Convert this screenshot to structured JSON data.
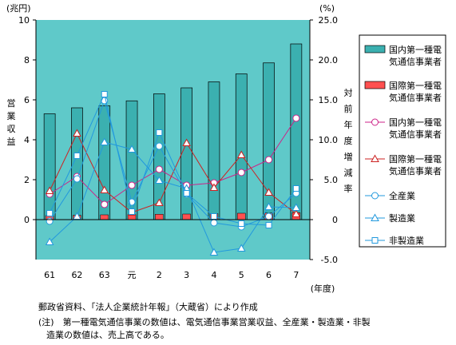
{
  "chart_data": {
    "type": "bar",
    "categories": [
      "61",
      "62",
      "63",
      "元",
      "2",
      "3",
      "4",
      "5",
      "6",
      "7"
    ],
    "xlabel": "(年度)",
    "y_left": {
      "unit": "(兆円)",
      "label": "営業収益",
      "ylim": [
        -2,
        10
      ],
      "ticks": [
        "0",
        "2",
        "4",
        "6",
        "8",
        "10"
      ]
    },
    "y_right": {
      "unit": "(%)",
      "label": "対前年度増減率",
      "ylim": [
        -5.0,
        25.0
      ],
      "ticks": [
        "-5.0",
        "0",
        "5.0",
        "10.0",
        "15.0",
        "20.0",
        "25.0"
      ]
    },
    "background_color": "#5FC9C9",
    "grid": false,
    "legend_position": "right",
    "bar_series": [
      {
        "name": "国内第一種電気通信事業者",
        "axis": "left",
        "color": "#3BB0B0",
        "values": [
          5.3,
          5.6,
          5.7,
          5.95,
          6.3,
          6.6,
          6.9,
          7.3,
          7.85,
          8.8
        ]
      },
      {
        "name": "国際第一種電気通信事業者",
        "axis": "left",
        "color": "#FF5050",
        "values": [
          0.2,
          0.22,
          0.24,
          0.25,
          0.27,
          0.28,
          0.3,
          0.32,
          0.33,
          0.35
        ]
      }
    ],
    "line_series": [
      {
        "name": "国内第一種電気通信事業者",
        "axis": "right",
        "color": "#CC2288",
        "marker": "circle",
        "values": [
          3.2,
          5.4,
          1.9,
          4.3,
          6.3,
          4.3,
          4.6,
          5.9,
          7.5,
          12.7
        ]
      },
      {
        "name": "国際第一種電気通信事業者",
        "axis": "right",
        "color": "#CC2222",
        "marker": "triangle",
        "values": [
          3.6,
          10.8,
          3.7,
          0.9,
          2.1,
          9.6,
          4.0,
          8.1,
          3.4,
          0.7
        ]
      },
      {
        "name": "全産業",
        "axis": "right",
        "color": "#2299DD",
        "marker": "circle",
        "values": [
          -0.2,
          5.1,
          14.9,
          2.2,
          9.2,
          3.2,
          -0.4,
          -0.9,
          0.4,
          3.3
        ]
      },
      {
        "name": "製造業",
        "axis": "right",
        "color": "#2299DD",
        "marker": "triangle",
        "values": [
          -2.8,
          0.4,
          9.7,
          8.8,
          4.9,
          3.9,
          -4.1,
          -3.6,
          1.6,
          1.5
        ]
      },
      {
        "name": "非製造業",
        "axis": "right",
        "color": "#2299DD",
        "marker": "square",
        "values": [
          0.8,
          8.0,
          15.7,
          1.0,
          10.9,
          3.3,
          0.4,
          -0.5,
          -0.7,
          3.9
        ]
      }
    ]
  },
  "notes": {
    "source": "郵政省資料、「法人企業統計年報」（大蔵省）により作成",
    "note_line1": "(注)　第一種電気通信事業の数値は、電気通信事業営業収益、全産業・製造業・非製",
    "note_line2": "造業の数値は、売上高である。"
  }
}
